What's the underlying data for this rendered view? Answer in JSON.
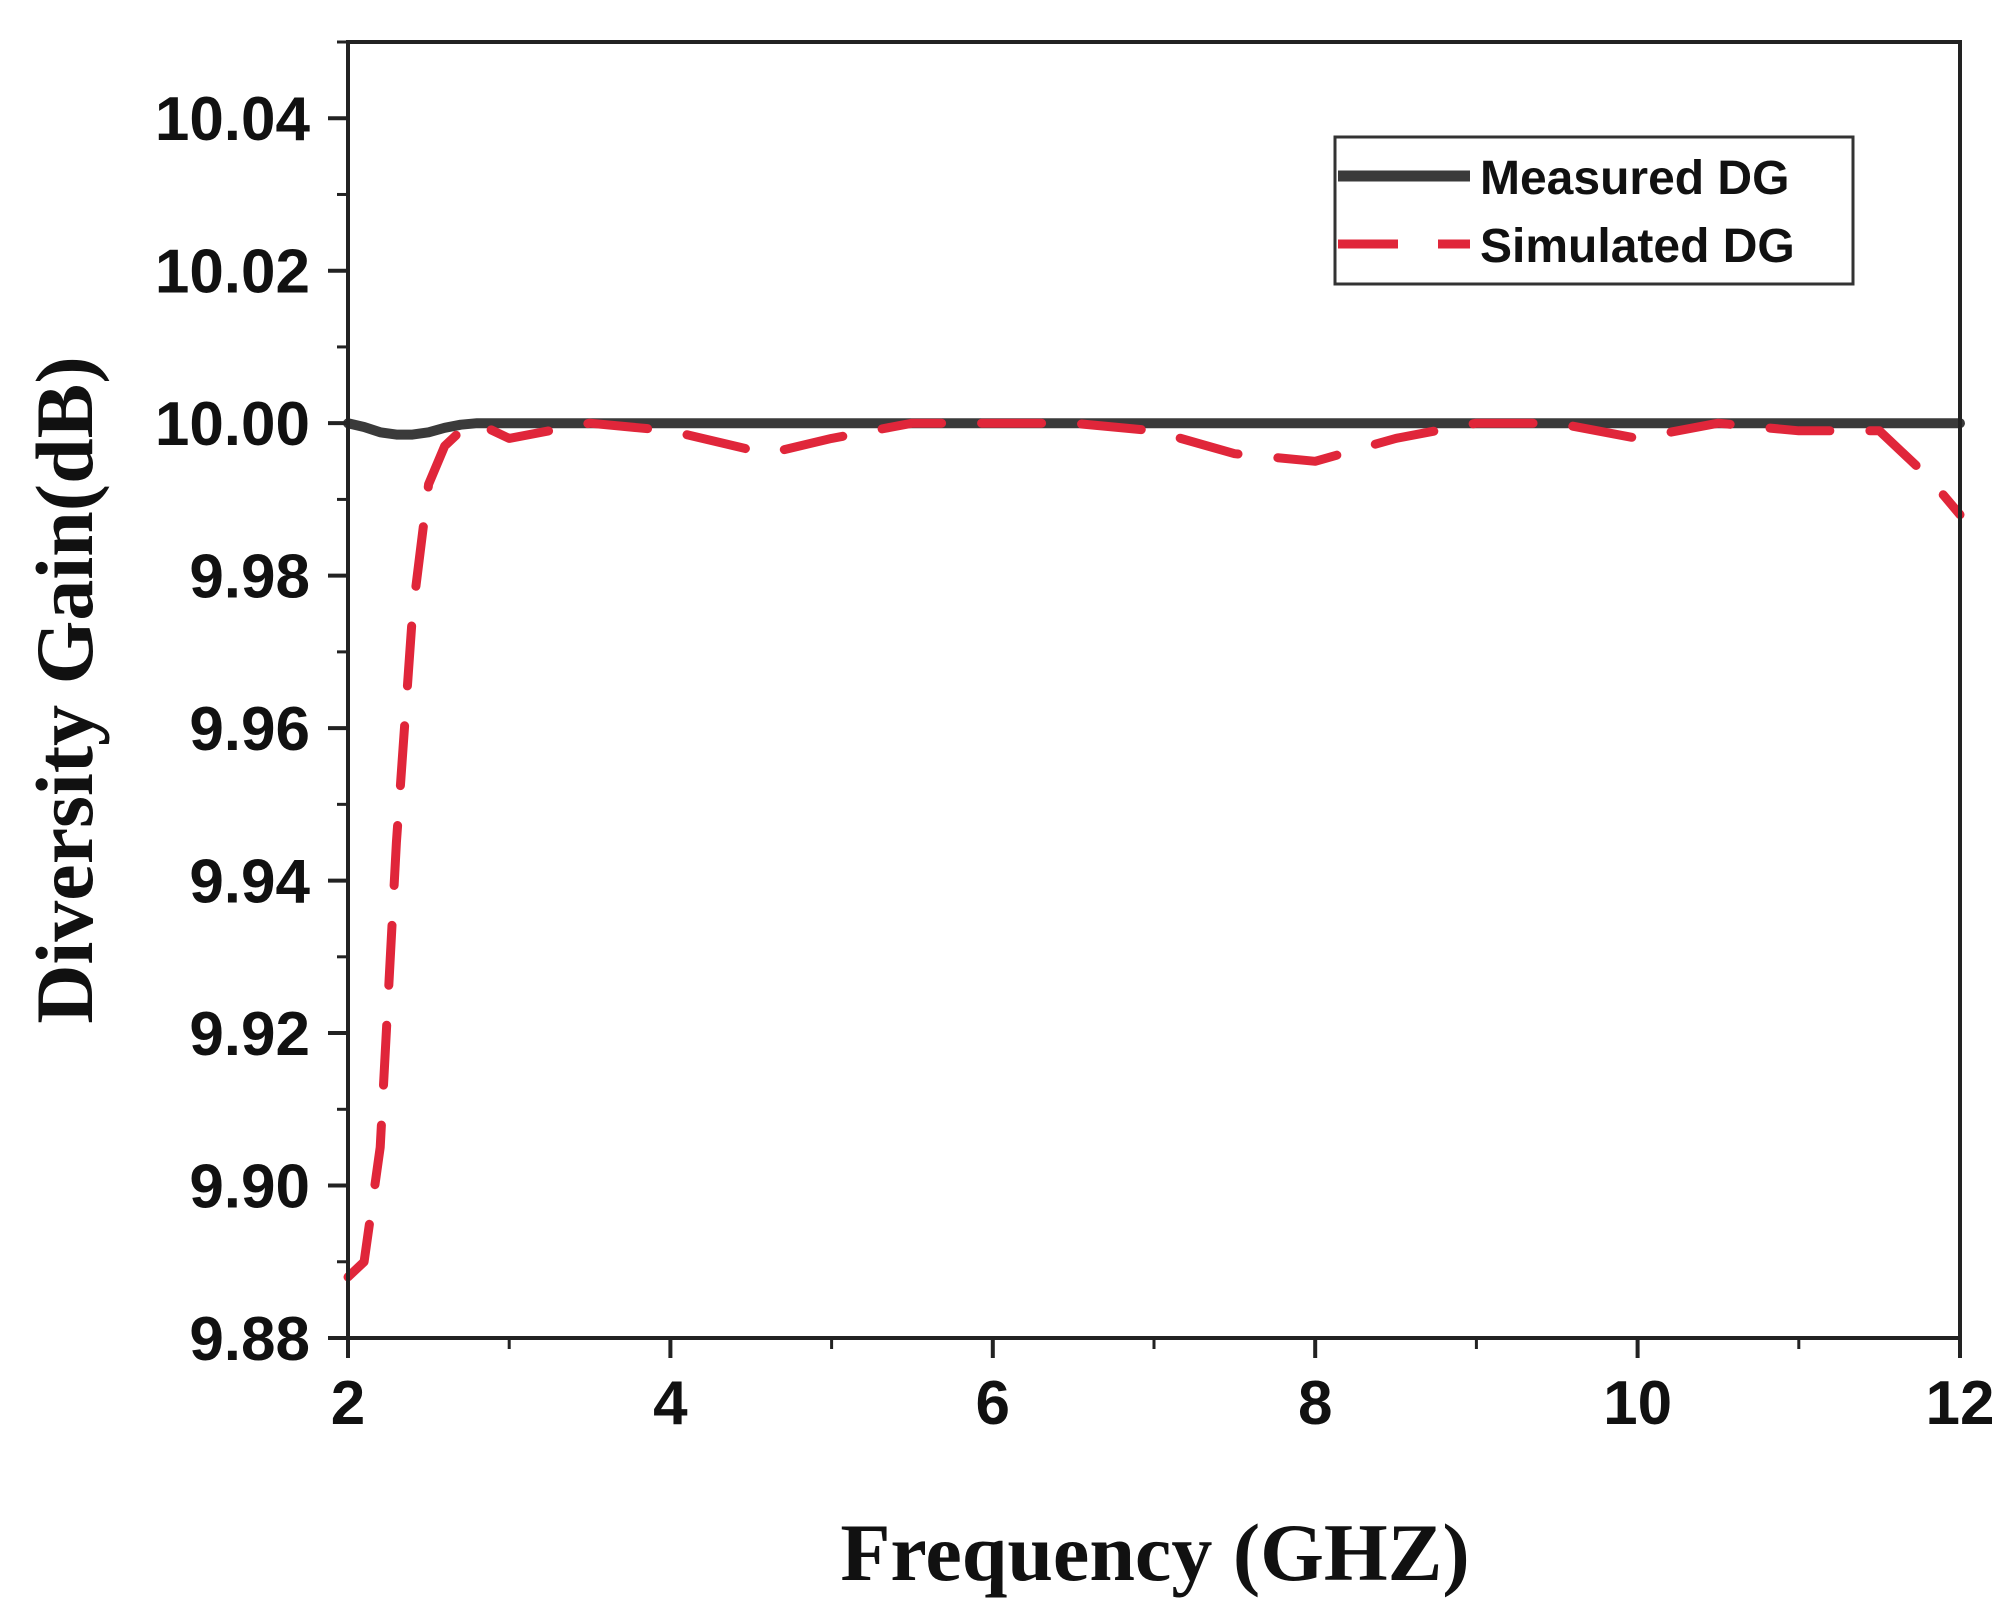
{
  "chart_data": {
    "type": "line",
    "title": "",
    "xlabel": "Frequency (GHZ)",
    "ylabel": "Diversity Gain(dB)",
    "xlim": [
      2,
      12
    ],
    "ylim": [
      9.88,
      10.05
    ],
    "xticks": [
      "2",
      "4",
      "6",
      "8",
      "10",
      "12"
    ],
    "yticks": [
      "9.88",
      "9.90",
      "9.92",
      "9.94",
      "9.96",
      "9.98",
      "10.00",
      "10.02",
      "10.04"
    ],
    "xtick_values": [
      2,
      4,
      6,
      8,
      10,
      12
    ],
    "ytick_values": [
      9.88,
      9.9,
      9.92,
      9.94,
      9.96,
      9.98,
      10.0,
      10.02,
      10.04
    ],
    "grid": false,
    "legend_position": "top-right",
    "series": [
      {
        "name": "Measured DG",
        "color": "#3a3a3a",
        "style": "solid",
        "x": [
          2.0,
          2.1,
          2.2,
          2.3,
          2.4,
          2.5,
          2.6,
          2.7,
          2.8,
          3.0,
          4.0,
          6.0,
          8.0,
          10.0,
          12.0
        ],
        "y": [
          10.0,
          9.9995,
          9.9988,
          9.9985,
          9.9985,
          9.9988,
          9.9994,
          9.9998,
          10.0,
          10.0,
          10.0,
          10.0,
          10.0,
          10.0,
          10.0
        ]
      },
      {
        "name": "Simulated DG",
        "color": "#e0263a",
        "style": "dashed",
        "x": [
          2.0,
          2.1,
          2.2,
          2.3,
          2.4,
          2.5,
          2.6,
          2.7,
          2.8,
          3.0,
          3.5,
          4.0,
          4.6,
          5.0,
          5.5,
          6.0,
          6.5,
          7.0,
          7.5,
          8.0,
          8.5,
          9.0,
          9.5,
          10.0,
          10.5,
          11.0,
          11.5,
          11.8,
          12.0
        ],
        "y": [
          9.888,
          9.89,
          9.905,
          9.945,
          9.975,
          9.992,
          9.997,
          9.999,
          10.0,
          9.998,
          10.0,
          9.999,
          9.996,
          9.998,
          10.0,
          10.0,
          10.0,
          9.999,
          9.996,
          9.995,
          9.998,
          10.0,
          10.0,
          9.998,
          10.0,
          9.999,
          9.999,
          9.993,
          9.988
        ]
      }
    ]
  }
}
